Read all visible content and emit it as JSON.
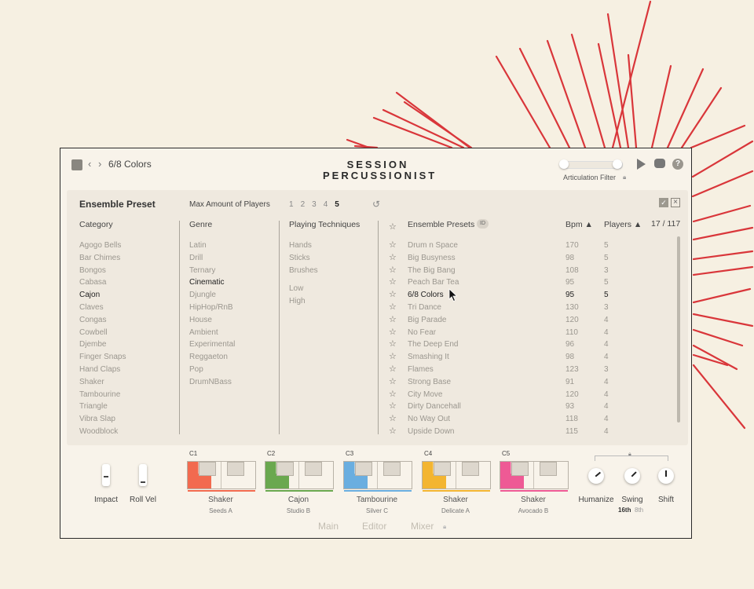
{
  "header": {
    "preset_name": "6/8 Colors",
    "logo_line1": "SESSION",
    "logo_line2": "PERCUSSIONIST",
    "articulation_filter": "Articulation Filter"
  },
  "panel": {
    "title": "Ensemble Preset",
    "max_players_label": "Max Amount of Players",
    "player_counts": [
      "1",
      "2",
      "3",
      "4",
      "5"
    ],
    "selected_player_count": "5",
    "headers": {
      "category": "Category",
      "genre": "Genre",
      "techniques": "Playing Techniques",
      "presets": "Ensemble Presets",
      "id_badge": "ID",
      "bpm": "Bpm ▲",
      "players": "Players ▲",
      "count": "17 / 117"
    },
    "categories": [
      "Agogo Bells",
      "Bar Chimes",
      "Bongos",
      "Cabasa",
      "Cajon",
      "Claves",
      "Congas",
      "Cowbell",
      "Djembe",
      "Finger Snaps",
      "Hand Claps",
      "Shaker",
      "Tambourine",
      "Triangle",
      "Vibra Slap",
      "Woodblock"
    ],
    "selected_category": "Cajon",
    "genres": [
      "Latin",
      "Drill",
      "Ternary",
      "Cinematic",
      "Djungle",
      "HipHop/RnB",
      "House",
      "Ambient",
      "Experimental",
      "Reggaeton",
      "Pop",
      "DrumNBass"
    ],
    "selected_genre": "Cinematic",
    "techniques": [
      "Hands",
      "Sticks",
      "Brushes"
    ],
    "intensity": [
      "Low",
      "High"
    ],
    "presets": [
      {
        "name": "Drum n Space",
        "bpm": "170",
        "players": "5"
      },
      {
        "name": "Big Busyness",
        "bpm": "98",
        "players": "5"
      },
      {
        "name": "The Big Bang",
        "bpm": "108",
        "players": "3"
      },
      {
        "name": "Peach Bar Tea",
        "bpm": "95",
        "players": "5"
      },
      {
        "name": "6/8 Colors",
        "bpm": "95",
        "players": "5"
      },
      {
        "name": "Tri Dance",
        "bpm": "130",
        "players": "3"
      },
      {
        "name": "Big Parade",
        "bpm": "120",
        "players": "4"
      },
      {
        "name": "No Fear",
        "bpm": "110",
        "players": "4"
      },
      {
        "name": "The Deep End",
        "bpm": "96",
        "players": "4"
      },
      {
        "name": "Smashing It",
        "bpm": "98",
        "players": "4"
      },
      {
        "name": "Flames",
        "bpm": "123",
        "players": "3"
      },
      {
        "name": "Strong Base",
        "bpm": "91",
        "players": "4"
      },
      {
        "name": "City Move",
        "bpm": "120",
        "players": "4"
      },
      {
        "name": "Dirty Dancehall",
        "bpm": "93",
        "players": "4"
      },
      {
        "name": "No Way Out",
        "bpm": "118",
        "players": "4"
      },
      {
        "name": "Upside Down",
        "bpm": "115",
        "players": "4"
      }
    ],
    "selected_preset": "6/8 Colors"
  },
  "controls": {
    "impact": "Impact",
    "roll_vel": "Roll Vel",
    "humanize": "Humanize",
    "swing": "Swing",
    "shift": "Shift",
    "swing_16": "16th",
    "swing_8": "8th"
  },
  "instruments": [
    {
      "note": "C1",
      "name": "Shaker",
      "sub": "Seeds A",
      "color": "#f26a4f"
    },
    {
      "note": "C2",
      "name": "Cajon",
      "sub": "Studio B",
      "color": "#6aa84f"
    },
    {
      "note": "C3",
      "name": "Tambourine",
      "sub": "Silver C",
      "color": "#6aaee0"
    },
    {
      "note": "C4",
      "name": "Shaker",
      "sub": "Delicate A",
      "color": "#f3b531"
    },
    {
      "note": "C5",
      "name": "Shaker",
      "sub": "Avocado B",
      "color": "#ee5a95"
    }
  ],
  "tabs": {
    "main": "Main",
    "editor": "Editor",
    "mixer": "Mixer"
  }
}
